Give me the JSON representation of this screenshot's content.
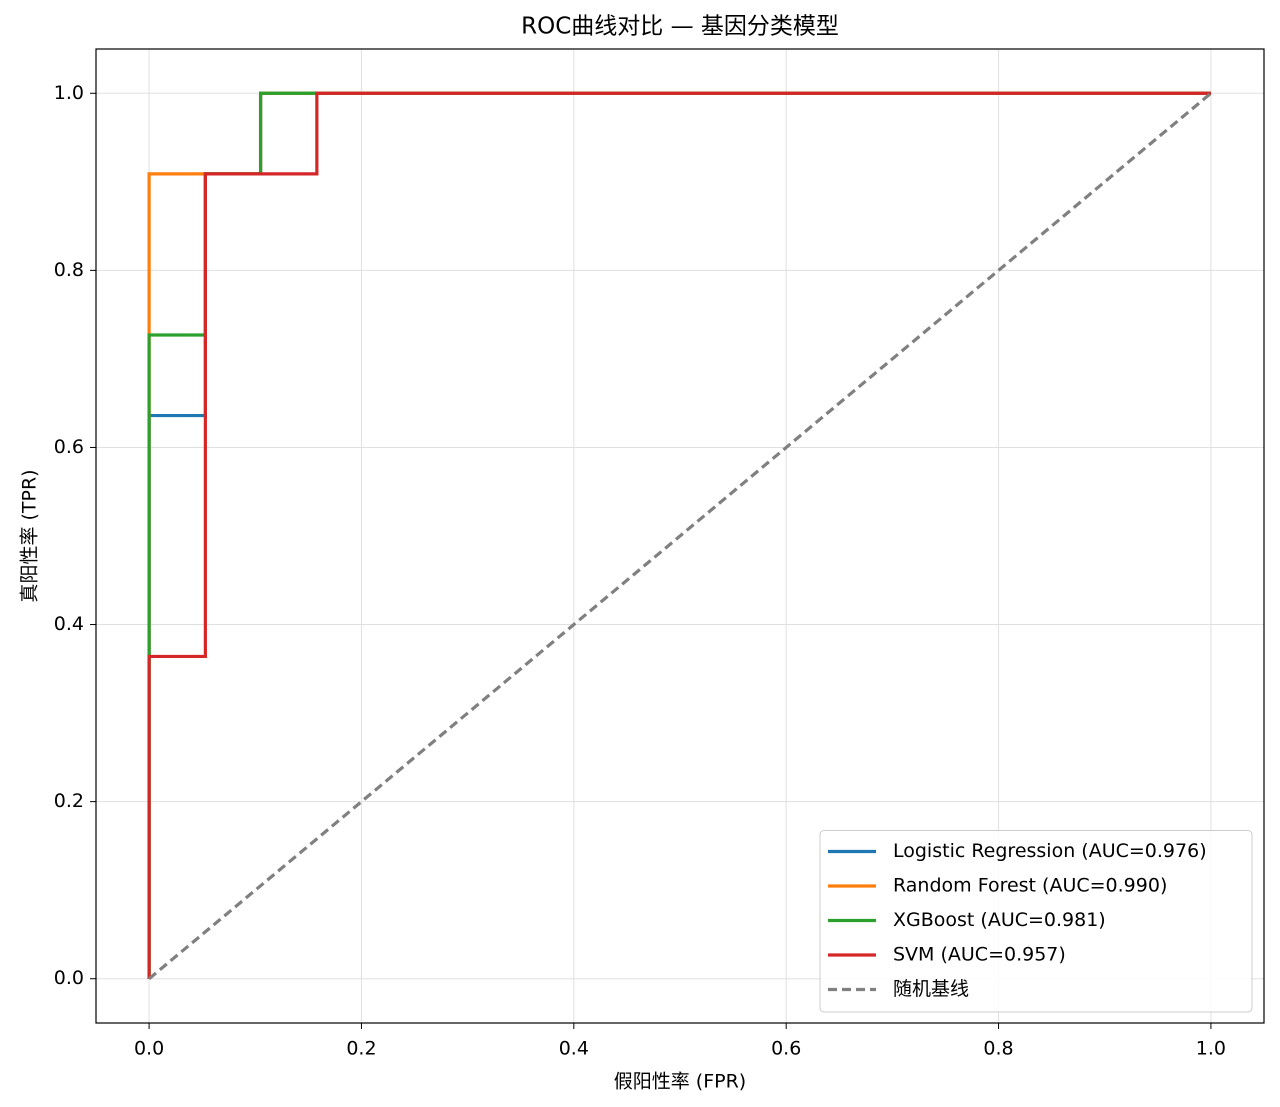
{
  "chart_data": {
    "type": "line",
    "title": "ROC曲线对比 — 基因分类模型",
    "x_label": "假阳性率 (FPR)",
    "y_label": "真阳性率 (TPR)",
    "xlim": [
      -0.05,
      1.05
    ],
    "ylim": [
      -0.05,
      1.05
    ],
    "xticks": [
      {
        "value": 0,
        "label": "0.0"
      },
      0.2,
      0.4,
      0.6,
      0.8,
      {
        "value": 1,
        "label": "1.0"
      }
    ],
    "yticks": [
      {
        "value": 0,
        "label": "0.0"
      },
      0.2,
      0.4,
      0.6,
      0.8,
      {
        "value": 1,
        "label": "1.0"
      }
    ],
    "grid": true,
    "legend": "lower right",
    "series": [
      {
        "name": "Logistic Regression (AUC=0.976)",
        "color": "#1f77b4",
        "style": "solid",
        "x": [
          0,
          0,
          0.053,
          0.053,
          0.105,
          0.105,
          1
        ],
        "values": [
          0,
          0.636,
          0.636,
          0.909,
          0.909,
          1,
          1
        ]
      },
      {
        "name": "Random Forest (AUC=0.990)",
        "color": "#ff7f0e",
        "style": "solid",
        "x": [
          0,
          0,
          0.105,
          0.105,
          1
        ],
        "values": [
          0,
          0.909,
          0.909,
          1,
          1
        ]
      },
      {
        "name": "XGBoost (AUC=0.981)",
        "color": "#2ca02c",
        "style": "solid",
        "x": [
          0,
          0,
          0.053,
          0.053,
          0.105,
          0.105,
          1
        ],
        "values": [
          0,
          0.727,
          0.727,
          0.909,
          0.909,
          1,
          1
        ]
      },
      {
        "name": "SVM (AUC=0.957)",
        "color": "#d62728",
        "style": "solid",
        "x": [
          0,
          0,
          0.053,
          0.053,
          0.158,
          0.158,
          1
        ],
        "values": [
          0,
          0.364,
          0.364,
          0.909,
          0.909,
          1,
          1
        ]
      },
      {
        "name": "随机基线",
        "color": "#808080",
        "style": "dashed",
        "x": [
          0,
          1
        ],
        "values": [
          0,
          1
        ]
      }
    ]
  }
}
